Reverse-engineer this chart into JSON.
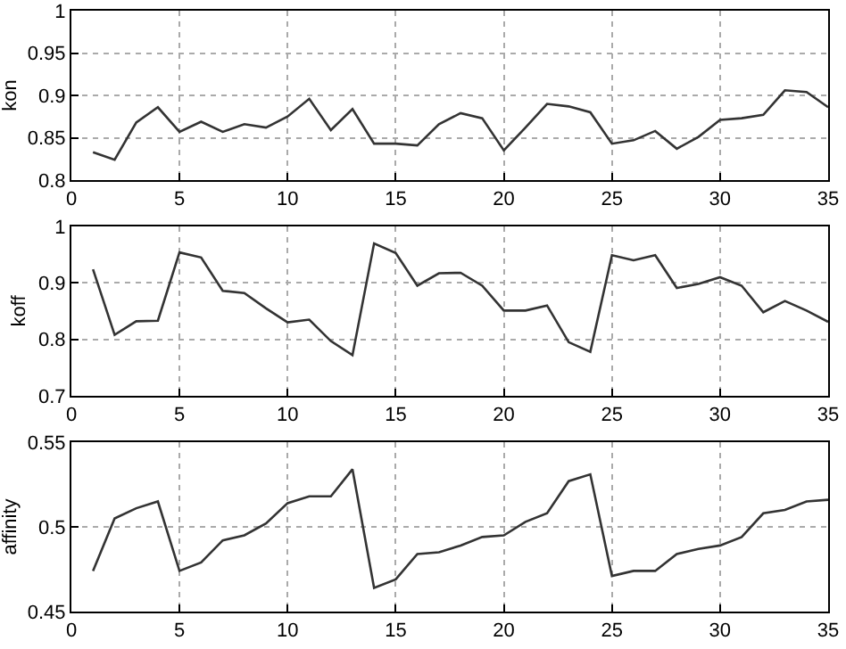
{
  "chart_data": [
    {
      "type": "line",
      "ylabel": "kon",
      "x": [
        1,
        2,
        3,
        4,
        5,
        6,
        7,
        8,
        9,
        10,
        11,
        12,
        13,
        14,
        15,
        16,
        17,
        18,
        19,
        20,
        21,
        22,
        23,
        24,
        25,
        26,
        27,
        28,
        29,
        30,
        31,
        32,
        33,
        34,
        35
      ],
      "series": [
        {
          "color": "#333333",
          "values": [
            0.833,
            0.824,
            0.868,
            0.886,
            0.857,
            0.869,
            0.857,
            0.866,
            0.862,
            0.875,
            0.896,
            0.859,
            0.884,
            0.843,
            0.843,
            0.841,
            0.866,
            0.879,
            0.873,
            0.835,
            0.862,
            0.89,
            0.887,
            0.88,
            0.843,
            0.847,
            0.858,
            0.837,
            0.851,
            0.871,
            0.873,
            0.877,
            0.906,
            0.904,
            0.886
          ]
        }
      ],
      "xlim": [
        0,
        35
      ],
      "xticks": [
        0,
        5,
        10,
        15,
        20,
        25,
        30,
        35
      ],
      "ylim": [
        0.8,
        1
      ],
      "yticks": [
        0.8,
        0.85,
        0.9,
        0.95,
        1
      ],
      "grid": true
    },
    {
      "type": "line",
      "ylabel": "koff",
      "x": [
        1,
        2,
        3,
        4,
        5,
        6,
        7,
        8,
        9,
        10,
        11,
        12,
        13,
        14,
        15,
        16,
        17,
        18,
        19,
        20,
        21,
        22,
        23,
        24,
        25,
        26,
        27,
        28,
        29,
        30,
        31,
        32,
        33,
        34,
        35
      ],
      "series": [
        {
          "color": "#333333",
          "values": [
            0.924,
            0.808,
            0.832,
            0.833,
            0.954,
            0.945,
            0.886,
            0.882,
            0.855,
            0.83,
            0.835,
            0.797,
            0.772,
            0.97,
            0.953,
            0.895,
            0.917,
            0.918,
            0.895,
            0.851,
            0.851,
            0.86,
            0.795,
            0.778,
            0.949,
            0.94,
            0.949,
            0.891,
            0.898,
            0.91,
            0.895,
            0.848,
            0.868,
            0.851,
            0.831
          ]
        }
      ],
      "xlim": [
        0,
        35
      ],
      "xticks": [
        0,
        5,
        10,
        15,
        20,
        25,
        30,
        35
      ],
      "ylim": [
        0.7,
        1
      ],
      "yticks": [
        0.7,
        0.8,
        0.9,
        1
      ],
      "grid": true
    },
    {
      "type": "line",
      "ylabel": "affinity",
      "x": [
        1,
        2,
        3,
        4,
        5,
        6,
        7,
        8,
        9,
        10,
        11,
        12,
        13,
        14,
        15,
        16,
        17,
        18,
        19,
        20,
        21,
        22,
        23,
        24,
        25,
        26,
        27,
        28,
        29,
        30,
        31,
        32,
        33,
        34,
        35
      ],
      "series": [
        {
          "color": "#333333",
          "values": [
            0.474,
            0.505,
            0.511,
            0.515,
            0.474,
            0.479,
            0.492,
            0.495,
            0.502,
            0.514,
            0.518,
            0.518,
            0.534,
            0.464,
            0.469,
            0.484,
            0.485,
            0.489,
            0.494,
            0.495,
            0.503,
            0.508,
            0.527,
            0.531,
            0.471,
            0.474,
            0.474,
            0.484,
            0.487,
            0.489,
            0.494,
            0.508,
            0.51,
            0.515,
            0.516
          ]
        }
      ],
      "xlim": [
        0,
        35
      ],
      "xticks": [
        0,
        5,
        10,
        15,
        20,
        25,
        30,
        35
      ],
      "ylim": [
        0.45,
        0.55
      ],
      "yticks": [
        0.45,
        0.5,
        0.55
      ],
      "grid": true
    }
  ]
}
